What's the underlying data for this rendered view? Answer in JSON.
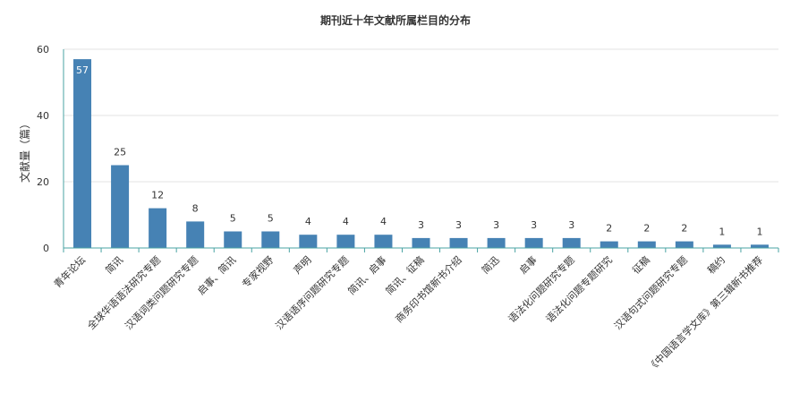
{
  "chart_data": {
    "type": "bar",
    "title": "期刊近十年文献所属栏目的分布",
    "xlabel": "",
    "ylabel": "文献量（篇）",
    "ylim": [
      0,
      60
    ],
    "yticks": [
      0,
      20,
      40,
      60
    ],
    "grid": true,
    "categories": [
      "青年论坛",
      "简讯",
      "全球华语语法研究专题",
      "汉语词类问题研究专题",
      "启事、简讯",
      "专家视野",
      "声明",
      "汉语语序问题研究专题",
      "简讯、启事",
      "简讯、征稿",
      "商务印书馆新书介绍",
      "简迅",
      "启事",
      "语法化问题研究专题",
      "语法化问题专题研究",
      "征稿",
      "汉语句式问题研究专题",
      "稿约",
      "《中国语言学文库》第三辑新书推荐"
    ],
    "values": [
      57,
      25,
      12,
      8,
      5,
      5,
      4,
      4,
      4,
      3,
      3,
      3,
      3,
      3,
      2,
      2,
      2,
      1,
      1
    ],
    "colors": {
      "bar": "#4682b4",
      "axis": "#4aa3a3",
      "grid": "#e3e3e3",
      "text": "#333333"
    }
  }
}
